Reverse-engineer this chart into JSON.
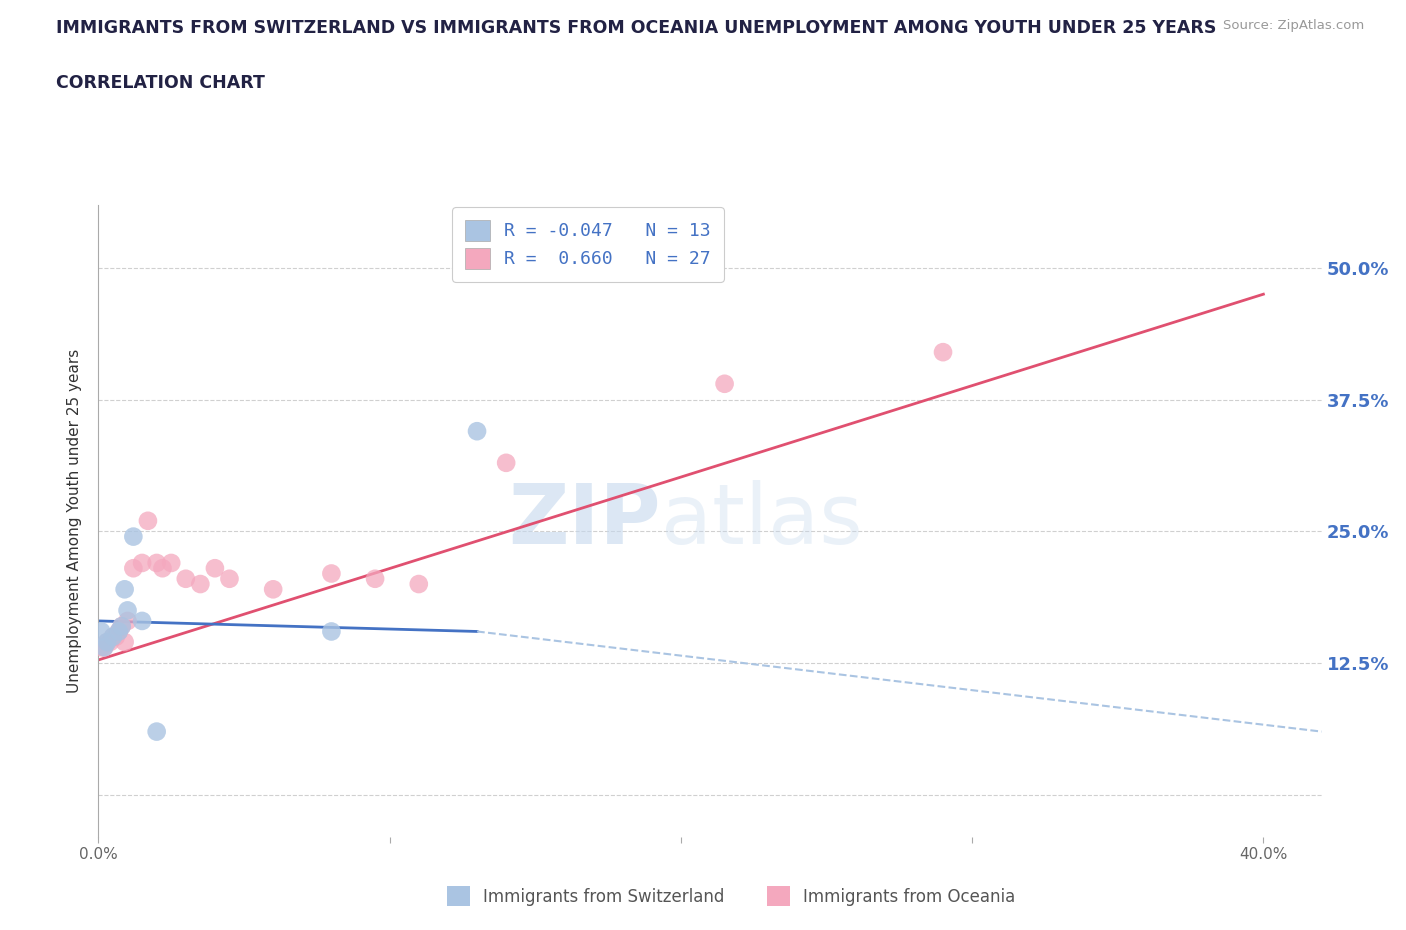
{
  "title_line1": "IMMIGRANTS FROM SWITZERLAND VS IMMIGRANTS FROM OCEANIA UNEMPLOYMENT AMONG YOUTH UNDER 25 YEARS",
  "title_line2": "CORRELATION CHART",
  "source": "Source: ZipAtlas.com",
  "ylabel": "Unemployment Among Youth under 25 years",
  "xlim": [
    0.0,
    0.42
  ],
  "ylim": [
    -0.04,
    0.56
  ],
  "xticks": [
    0.0,
    0.1,
    0.2,
    0.3,
    0.4
  ],
  "yticks": [
    0.0,
    0.125,
    0.25,
    0.375,
    0.5
  ],
  "ytick_right_labels": [
    "",
    "12.5%",
    "25.0%",
    "37.5%",
    "50.0%"
  ],
  "r_switzerland": -0.047,
  "n_switzerland": 13,
  "r_oceania": 0.66,
  "n_oceania": 27,
  "color_switzerland": "#aac4e2",
  "color_oceania": "#f4a8be",
  "trendline_switzerland_solid_color": "#4472c4",
  "trendline_switzerland_dash_color": "#aac4e2",
  "trendline_oceania_color": "#e05070",
  "watermark_zip": "ZIP",
  "watermark_atlas": "atlas",
  "switzerland_x": [
    0.001,
    0.002,
    0.003,
    0.005,
    0.007,
    0.008,
    0.009,
    0.01,
    0.012,
    0.015,
    0.02,
    0.08,
    0.13
  ],
  "switzerland_y": [
    0.155,
    0.14,
    0.145,
    0.15,
    0.155,
    0.16,
    0.195,
    0.175,
    0.245,
    0.165,
    0.06,
    0.155,
    0.345
  ],
  "oceania_x": [
    0.001,
    0.002,
    0.003,
    0.004,
    0.005,
    0.006,
    0.007,
    0.008,
    0.009,
    0.01,
    0.012,
    0.015,
    0.017,
    0.02,
    0.022,
    0.025,
    0.03,
    0.035,
    0.04,
    0.045,
    0.06,
    0.08,
    0.095,
    0.11,
    0.14,
    0.215,
    0.29
  ],
  "oceania_y": [
    0.14,
    0.14,
    0.145,
    0.145,
    0.15,
    0.15,
    0.155,
    0.16,
    0.145,
    0.165,
    0.215,
    0.22,
    0.26,
    0.22,
    0.215,
    0.22,
    0.205,
    0.2,
    0.215,
    0.205,
    0.195,
    0.21,
    0.205,
    0.2,
    0.315,
    0.39,
    0.42
  ],
  "legend_label_switzerland": "Immigrants from Switzerland",
  "legend_label_oceania": "Immigrants from Oceania",
  "background_color": "#ffffff",
  "grid_color": "#d0d0d0",
  "trendline_oceania_x0": 0.0,
  "trendline_oceania_y0": 0.128,
  "trendline_oceania_x1": 0.4,
  "trendline_oceania_y1": 0.475,
  "trendline_sw_solid_x0": 0.0,
  "trendline_sw_solid_y0": 0.165,
  "trendline_sw_solid_x1": 0.13,
  "trendline_sw_solid_y1": 0.155,
  "trendline_sw_dash_x0": 0.13,
  "trendline_sw_dash_y0": 0.155,
  "trendline_sw_dash_x1": 0.42,
  "trendline_sw_dash_y1": 0.06
}
